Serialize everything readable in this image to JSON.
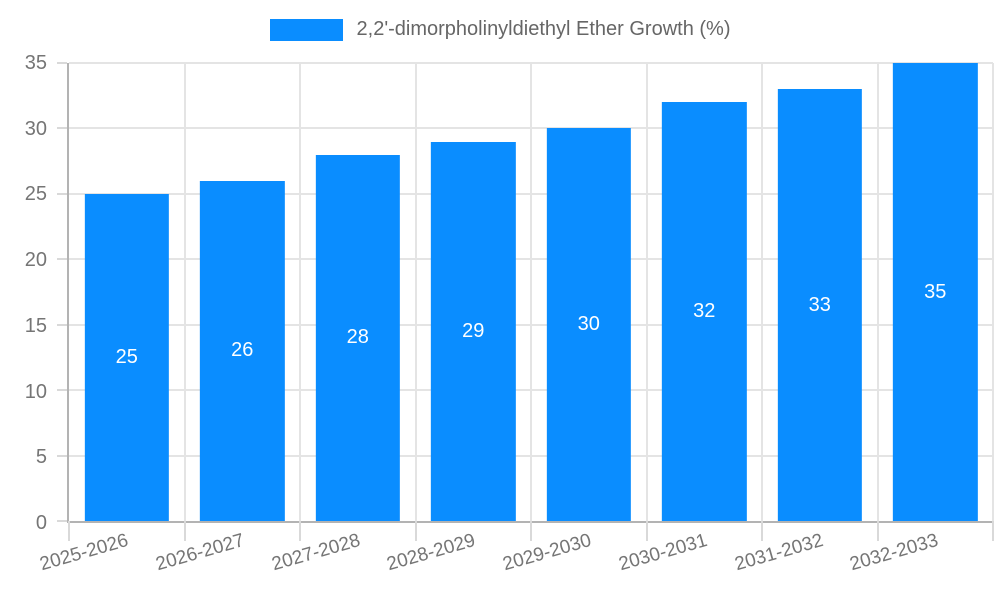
{
  "legend": {
    "label": "2,2'-dimorpholinyldiethyl Ether Growth (%)"
  },
  "chart_data": {
    "type": "bar",
    "title": "2,2'-dimorpholinyldiethyl Ether Growth (%)",
    "categories": [
      "2025-2026",
      "2026-2027",
      "2027-2028",
      "2028-2029",
      "2029-2030",
      "2030-2031",
      "2031-2032",
      "2032-2033"
    ],
    "values": [
      25,
      26,
      28,
      29,
      30,
      32,
      33,
      35
    ],
    "xlabel": "",
    "ylabel": "",
    "ylim": [
      0,
      35
    ],
    "yticks": [
      0,
      5,
      10,
      15,
      20,
      25,
      30,
      35
    ],
    "grid": true,
    "legend_position": "top",
    "bar_color": "#0a8dff",
    "value_label_color": "#ffffff",
    "grid_color": "#e4e4e4",
    "axis_color": "#b3b3b3",
    "tick_text_color": "#757575"
  }
}
